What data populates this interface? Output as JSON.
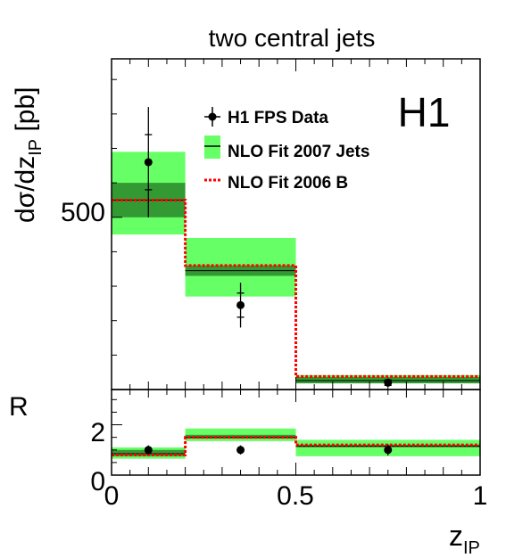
{
  "title": "two central jets",
  "watermark": "H1",
  "ylabel_main": "dσ/dz_IP [pb]",
  "ylabel_ratio": "R",
  "xlabel": "z_IP",
  "legend": {
    "data": "H1 FPS Data",
    "nlo2007": "NLO Fit 2007 Jets",
    "nlo2006": "NLO Fit 2006 B"
  },
  "colors": {
    "band_light": "#66ff66",
    "band_dark": "#339933",
    "nlo2006": "#ff0000",
    "data": "#000000"
  },
  "chart_data": [
    {
      "type": "step",
      "title": "two central jets",
      "ylabel": "dσ/dz_IP [pb]",
      "xlim": [
        0,
        1
      ],
      "ylim": [
        0,
        960
      ],
      "yticks": [
        500
      ],
      "bins": [
        [
          0,
          0.2
        ],
        [
          0.2,
          0.5
        ],
        [
          0.5,
          1
        ]
      ],
      "series": [
        {
          "name": "H1 FPS Data",
          "kind": "points",
          "x": [
            0.1,
            0.35,
            0.75
          ],
          "y": [
            660,
            245,
            20
          ],
          "err_stat": [
            80,
            35,
            8
          ],
          "err_tot": [
            160,
            65,
            12
          ]
        },
        {
          "name": "NLO Fit 2007 Jets",
          "kind": "band",
          "inner_low": [
            500,
            330,
            18
          ],
          "inner_high": [
            600,
            360,
            36
          ],
          "outer_low": [
            450,
            270,
            18
          ],
          "outer_high": [
            690,
            440,
            42
          ],
          "central": [
            550,
            345,
            26
          ]
        },
        {
          "name": "NLO Fit 2006 B",
          "kind": "line",
          "y": [
            550,
            360,
            38
          ]
        }
      ]
    },
    {
      "type": "step",
      "ylabel": "R",
      "xlabel": "z_IP",
      "xlim": [
        0,
        1
      ],
      "ylim": [
        0,
        3.4
      ],
      "xticks": [
        0,
        0.5,
        1
      ],
      "xtick_labels": [
        "0",
        "0.5",
        "1"
      ],
      "yticks": [
        0,
        2
      ],
      "series": [
        {
          "name": "H1 FPS Data",
          "kind": "points",
          "x": [
            0.1,
            0.35,
            0.75
          ],
          "y": [
            1.0,
            1.0,
            1.0
          ],
          "err": [
            0.18,
            0.18,
            0.22
          ]
        },
        {
          "name": "NLO Fit 2007 Jets",
          "kind": "band",
          "inner_low": [
            0.75,
            1.45,
            1.1
          ],
          "inner_high": [
            1.0,
            1.6,
            1.2
          ],
          "outer_low": [
            0.65,
            1.35,
            0.75
          ],
          "outer_high": [
            1.1,
            1.85,
            1.4
          ],
          "central": [
            0.85,
            1.5,
            1.15
          ]
        },
        {
          "name": "NLO Fit 2006 B",
          "kind": "line",
          "y": [
            0.8,
            1.5,
            1.2
          ]
        }
      ]
    }
  ]
}
